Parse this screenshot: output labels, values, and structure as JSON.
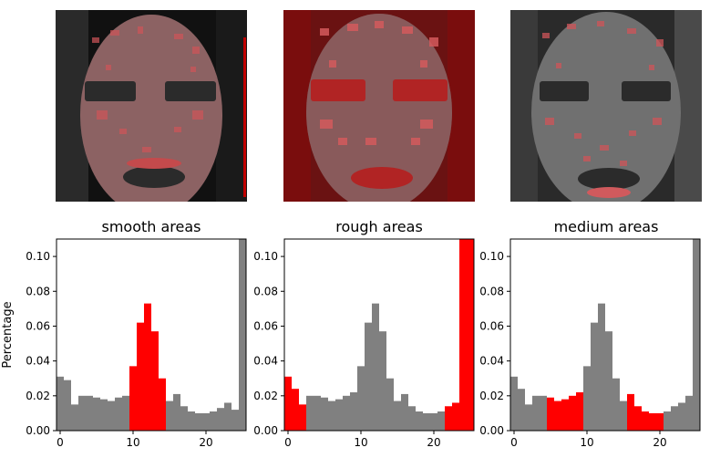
{
  "panels": [
    {
      "id": "smooth",
      "title": "smooth areas"
    },
    {
      "id": "rough",
      "title": "rough areas"
    },
    {
      "id": "medium",
      "title": "medium areas"
    }
  ],
  "colors": {
    "gray_bar": "#808080",
    "highlight_bar": "#ff0000",
    "skin_tint": "#cc4e50"
  },
  "chart_data": [
    {
      "type": "bar",
      "title": "smooth areas",
      "ylabel": "Percentage",
      "xlabel": "",
      "xlim": [
        -0.5,
        25.5
      ],
      "ylim": [
        0,
        0.11
      ],
      "xticks": [
        0,
        10,
        20
      ],
      "yticks": [
        0.0,
        0.02,
        0.04,
        0.06,
        0.08,
        0.1
      ],
      "x": [
        0,
        1,
        2,
        3,
        4,
        5,
        6,
        7,
        8,
        9,
        10,
        11,
        12,
        13,
        14,
        15,
        16,
        17,
        18,
        19,
        20,
        21,
        22,
        23,
        24,
        25
      ],
      "values": [
        0.031,
        0.029,
        0.015,
        0.02,
        0.02,
        0.019,
        0.018,
        0.017,
        0.019,
        0.02,
        0.037,
        0.062,
        0.073,
        0.057,
        0.03,
        0.017,
        0.021,
        0.014,
        0.011,
        0.01,
        0.01,
        0.011,
        0.013,
        0.016,
        0.012,
        0.11
      ],
      "highlight": [
        10,
        11,
        12,
        13,
        14
      ],
      "grid": false
    },
    {
      "type": "bar",
      "title": "rough areas",
      "ylabel": "",
      "xlabel": "",
      "xlim": [
        -0.5,
        25.5
      ],
      "ylim": [
        0,
        0.11
      ],
      "xticks": [
        0,
        10,
        20
      ],
      "yticks": [
        0.0,
        0.02,
        0.04,
        0.06,
        0.08,
        0.1
      ],
      "x": [
        0,
        1,
        2,
        3,
        4,
        5,
        6,
        7,
        8,
        9,
        10,
        11,
        12,
        13,
        14,
        15,
        16,
        17,
        18,
        19,
        20,
        21,
        22,
        23,
        24,
        25
      ],
      "values": [
        0.031,
        0.024,
        0.015,
        0.02,
        0.02,
        0.019,
        0.017,
        0.018,
        0.02,
        0.022,
        0.037,
        0.062,
        0.073,
        0.057,
        0.03,
        0.017,
        0.021,
        0.014,
        0.011,
        0.01,
        0.01,
        0.011,
        0.014,
        0.016,
        0.11,
        0.11
      ],
      "highlight": [
        0,
        1,
        2,
        22,
        23,
        24,
        25
      ],
      "grid": false
    },
    {
      "type": "bar",
      "title": "medium areas",
      "ylabel": "",
      "xlabel": "",
      "xlim": [
        -0.5,
        25.5
      ],
      "ylim": [
        0,
        0.11
      ],
      "xticks": [
        0,
        10,
        20
      ],
      "yticks": [
        0.0,
        0.02,
        0.04,
        0.06,
        0.08,
        0.1
      ],
      "x": [
        0,
        1,
        2,
        3,
        4,
        5,
        6,
        7,
        8,
        9,
        10,
        11,
        12,
        13,
        14,
        15,
        16,
        17,
        18,
        19,
        20,
        21,
        22,
        23,
        24,
        25
      ],
      "values": [
        0.031,
        0.024,
        0.015,
        0.02,
        0.02,
        0.019,
        0.017,
        0.018,
        0.02,
        0.022,
        0.037,
        0.062,
        0.073,
        0.057,
        0.03,
        0.017,
        0.021,
        0.014,
        0.011,
        0.01,
        0.01,
        0.011,
        0.014,
        0.016,
        0.02,
        0.11
      ],
      "highlight": [
        5,
        6,
        7,
        8,
        9,
        16,
        17,
        18,
        19,
        20
      ],
      "grid": false
    }
  ]
}
